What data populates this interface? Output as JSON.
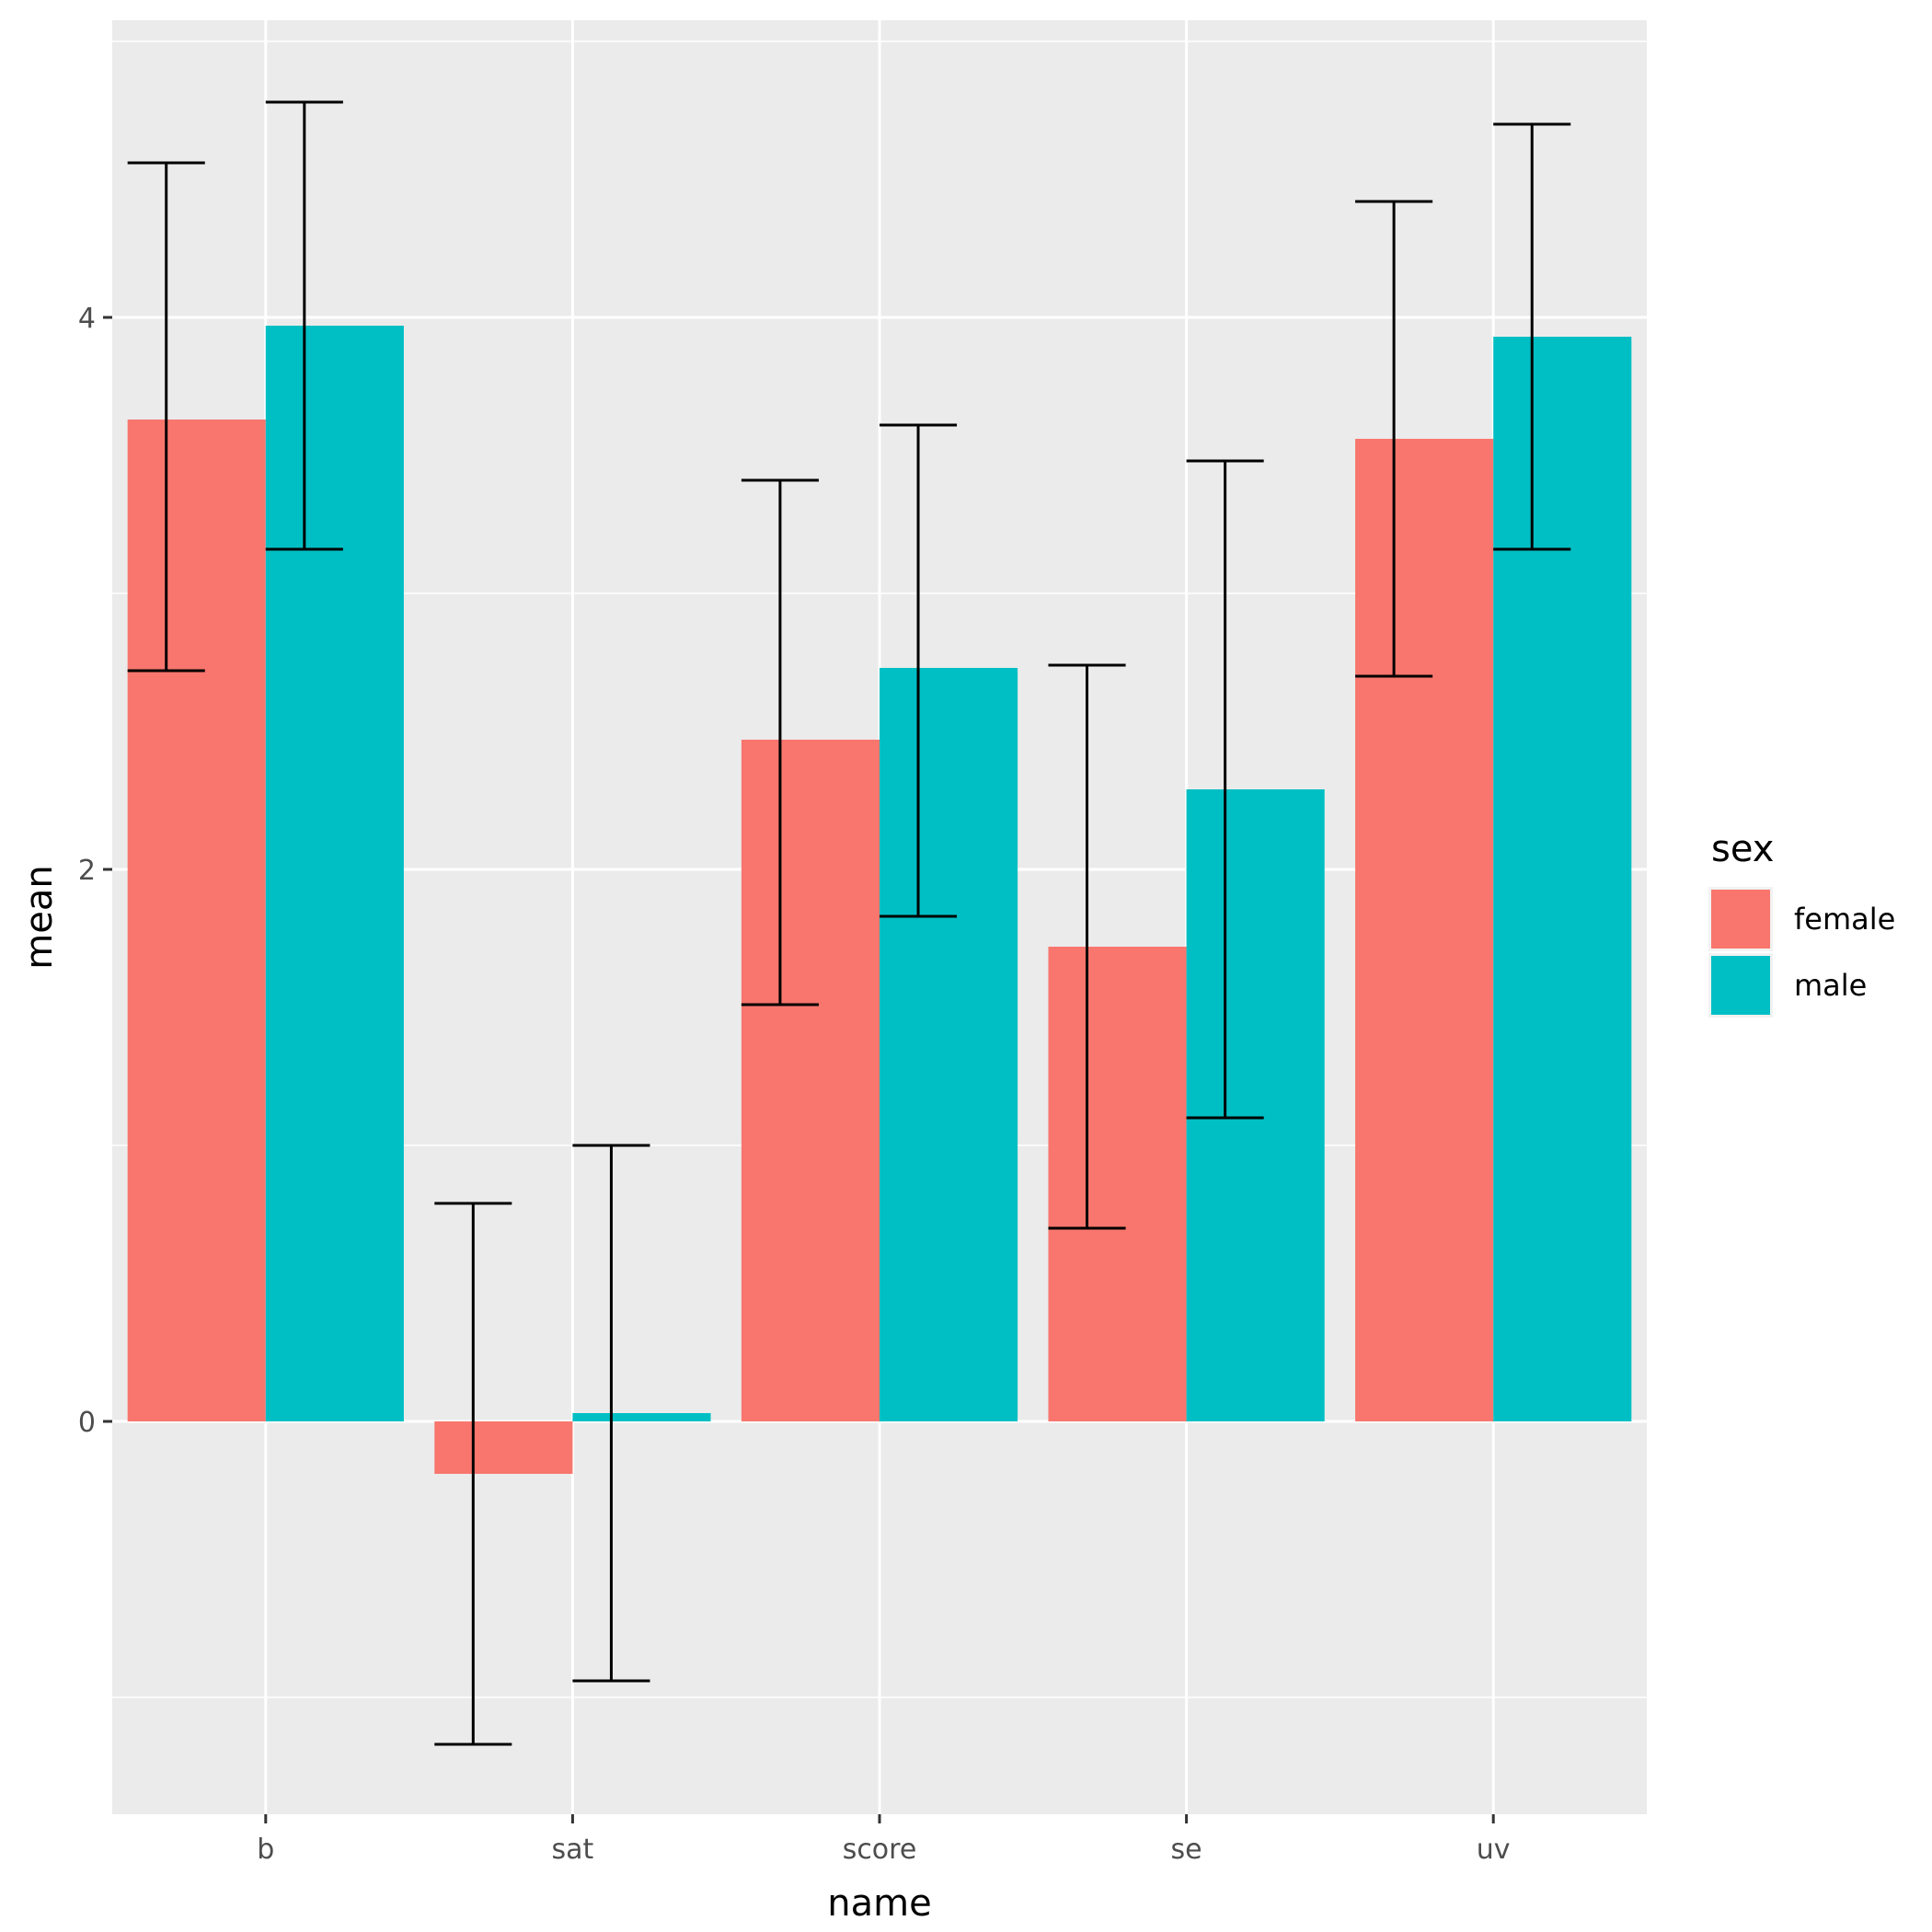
{
  "chart_data": {
    "type": "bar",
    "xlabel": "name",
    "ylabel": "mean",
    "categories": [
      "b",
      "sat",
      "score",
      "se",
      "uv"
    ],
    "ylim": [
      -1.45,
      5.0
    ],
    "y_ticks": [
      0,
      2,
      4
    ],
    "y_tick_labels": [
      "0",
      "2",
      "4"
    ],
    "grid": true,
    "legend": {
      "title": "sex",
      "position": "right"
    },
    "series": [
      {
        "name": "female",
        "color": "#F8766D",
        "values": [
          3.63,
          -0.19,
          2.47,
          1.72,
          3.56
        ],
        "err_low": [
          2.72,
          -1.17,
          1.51,
          0.7,
          2.7
        ],
        "err_high": [
          4.56,
          0.79,
          3.41,
          2.74,
          4.42
        ]
      },
      {
        "name": "male",
        "color": "#00BFC4",
        "values": [
          3.97,
          0.03,
          2.73,
          2.29,
          3.93
        ],
        "err_low": [
          3.16,
          -0.94,
          1.83,
          1.1,
          3.16
        ],
        "err_high": [
          4.78,
          1.0,
          3.61,
          3.48,
          4.7
        ]
      }
    ]
  }
}
